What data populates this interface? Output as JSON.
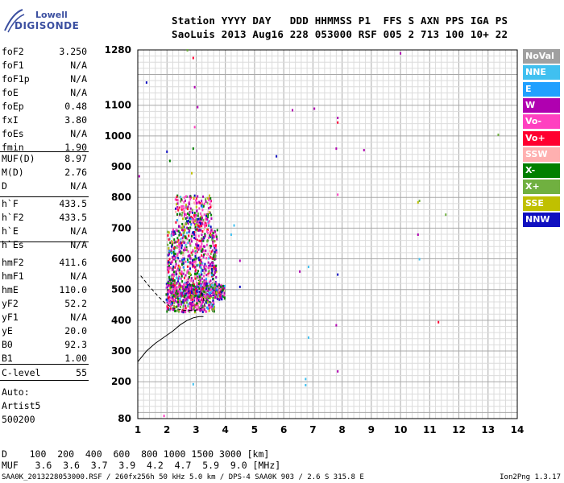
{
  "logo": {
    "line1": "Lowell",
    "line2": "DIGISONDE"
  },
  "header": {
    "line1": "Station YYYY DAY   DDD HHMMSS P1  FFS S AXN PPS IGA PS",
    "line2": "SaoLuis 2013 Aug16 228 053000 RSF 005 2 713 100 10+ 22"
  },
  "params_a": [
    {
      "name": "foF2",
      "value": "3.250"
    },
    {
      "name": "foF1",
      "value": "N/A"
    },
    {
      "name": "foF1p",
      "value": "N/A"
    },
    {
      "name": "foE",
      "value": "N/A"
    },
    {
      "name": "foEp",
      "value": "0.48"
    },
    {
      "name": "fxI",
      "value": "3.80"
    },
    {
      "name": "foEs",
      "value": "N/A"
    },
    {
      "name": "fmin",
      "value": "1.90"
    }
  ],
  "params_b": [
    {
      "name": "MUF(D)",
      "value": "8.97"
    },
    {
      "name": "M(D)",
      "value": "2.76"
    },
    {
      "name": "D",
      "value": "N/A"
    }
  ],
  "params_c": [
    {
      "name": "h`F",
      "value": "433.5"
    },
    {
      "name": "h`F2",
      "value": "433.5"
    },
    {
      "name": "h`E",
      "value": "N/A"
    },
    {
      "name": "h`Es",
      "value": "N/A"
    }
  ],
  "params_d": [
    {
      "name": "hmF2",
      "value": "411.6"
    },
    {
      "name": "hmF1",
      "value": "N/A"
    },
    {
      "name": "hmE",
      "value": "110.0"
    },
    {
      "name": "yF2",
      "value": "52.2"
    },
    {
      "name": "yF1",
      "value": "N/A"
    },
    {
      "name": "yE",
      "value": "20.0"
    },
    {
      "name": "B0",
      "value": "92.3"
    },
    {
      "name": "B1",
      "value": "1.00"
    }
  ],
  "params_e": [
    {
      "name": "C-level",
      "value": "55"
    }
  ],
  "auto": {
    "line1": "Auto:",
    "line2": "Artist5",
    "line3": "500200"
  },
  "legend": [
    {
      "label": "NoVal",
      "color": "#a0a0a0"
    },
    {
      "label": "NNE",
      "color": "#40c0f0"
    },
    {
      "label": "E",
      "color": "#20a0ff"
    },
    {
      "label": "W",
      "color": "#b000b0"
    },
    {
      "label": "Vo-",
      "color": "#ff40c0"
    },
    {
      "label": "Vo+",
      "color": "#ff0030"
    },
    {
      "label": "SSW",
      "color": "#ffb0b0"
    },
    {
      "label": "X-",
      "color": "#008000"
    },
    {
      "label": "X+",
      "color": "#70b040"
    },
    {
      "label": "SSE",
      "color": "#c0c000"
    },
    {
      "label": "NNW",
      "color": "#1010c0"
    }
  ],
  "bottom": {
    "row1": "D    100  200  400  600  800 1000 1500 3000 [km]",
    "row2": "MUF   3.6  3.6  3.7  3.9  4.2  4.7  5.9  9.0 [MHz]"
  },
  "footer": {
    "left": "SAA0K_2013228053000.RSF / 260fx256h 50 kHz 5.0 km / DPS-4 SAA0K 903 / 2.6 S 315.8 E",
    "right": "Ion2Png 1.3.17"
  },
  "chart_data": {
    "type": "scatter",
    "xlim": [
      1,
      14
    ],
    "ylim": [
      80,
      1280
    ],
    "x_ticks": [
      1,
      2,
      3,
      4,
      5,
      6,
      7,
      8,
      9,
      10,
      11,
      12,
      13,
      14
    ],
    "y_ticks": [
      80,
      200,
      300,
      400,
      500,
      600,
      700,
      800,
      900,
      1000,
      1100,
      1280
    ],
    "grid": true,
    "profile_curve": {
      "x": [
        1.0,
        1.3,
        1.6,
        1.9,
        2.2,
        2.45,
        2.7,
        2.9,
        3.1,
        3.25
      ],
      "y": [
        265,
        300,
        325,
        345,
        365,
        385,
        400,
        408,
        412,
        412
      ]
    },
    "dashed_trace": {
      "x": [
        1.1,
        1.4,
        1.7,
        1.95,
        2.2,
        2.6,
        3.0,
        3.3,
        3.25,
        3.15
      ],
      "y": [
        545,
        510,
        478,
        455,
        440,
        432,
        433,
        445,
        470,
        500
      ]
    },
    "scatter_points": [
      {
        "x": 1.05,
        "y": 870,
        "dir": "W"
      },
      {
        "x": 1.3,
        "y": 1175,
        "dir": "NNW"
      },
      {
        "x": 1.9,
        "y": 90,
        "dir": "Vo-"
      },
      {
        "x": 2.0,
        "y": 950,
        "dir": "NNW"
      },
      {
        "x": 2.1,
        "y": 920,
        "dir": "X-"
      },
      {
        "x": 2.7,
        "y": 1280,
        "dir": "X+"
      },
      {
        "x": 2.9,
        "y": 1255,
        "dir": "Vo+"
      },
      {
        "x": 2.95,
        "y": 1160,
        "dir": "W"
      },
      {
        "x": 3.05,
        "y": 1095,
        "dir": "W"
      },
      {
        "x": 2.95,
        "y": 1030,
        "dir": "Vo-"
      },
      {
        "x": 2.9,
        "y": 960,
        "dir": "X-"
      },
      {
        "x": 2.85,
        "y": 880,
        "dir": "SSE"
      },
      {
        "x": 2.9,
        "y": 193,
        "dir": "NNE"
      },
      {
        "x": 4.3,
        "y": 710,
        "dir": "NNE"
      },
      {
        "x": 4.2,
        "y": 680,
        "dir": "NNE"
      },
      {
        "x": 4.5,
        "y": 595,
        "dir": "W"
      },
      {
        "x": 4.5,
        "y": 510,
        "dir": "NNW"
      },
      {
        "x": 5.75,
        "y": 935,
        "dir": "NNW"
      },
      {
        "x": 6.3,
        "y": 1085,
        "dir": "W"
      },
      {
        "x": 6.55,
        "y": 560,
        "dir": "W"
      },
      {
        "x": 6.75,
        "y": 210,
        "dir": "NNE"
      },
      {
        "x": 6.75,
        "y": 190,
        "dir": "NNE"
      },
      {
        "x": 6.85,
        "y": 345,
        "dir": "NNE"
      },
      {
        "x": 6.85,
        "y": 575,
        "dir": "NNE"
      },
      {
        "x": 7.05,
        "y": 1090,
        "dir": "W"
      },
      {
        "x": 7.8,
        "y": 960,
        "dir": "W"
      },
      {
        "x": 7.85,
        "y": 1060,
        "dir": "W"
      },
      {
        "x": 7.85,
        "y": 1045,
        "dir": "Vo+"
      },
      {
        "x": 7.8,
        "y": 385,
        "dir": "W"
      },
      {
        "x": 7.85,
        "y": 235,
        "dir": "W"
      },
      {
        "x": 7.85,
        "y": 550,
        "dir": "NNW"
      },
      {
        "x": 7.85,
        "y": 810,
        "dir": "Vo-"
      },
      {
        "x": 8.75,
        "y": 955,
        "dir": "W"
      },
      {
        "x": 10.0,
        "y": 1270,
        "dir": "W"
      },
      {
        "x": 10.6,
        "y": 785,
        "dir": "SSE"
      },
      {
        "x": 10.65,
        "y": 790,
        "dir": "X+"
      },
      {
        "x": 10.6,
        "y": 680,
        "dir": "W"
      },
      {
        "x": 10.65,
        "y": 600,
        "dir": "NNE"
      },
      {
        "x": 11.3,
        "y": 395,
        "dir": "Vo+"
      },
      {
        "x": 11.55,
        "y": 745,
        "dir": "X+"
      },
      {
        "x": 13.35,
        "y": 1005,
        "dir": "X+"
      }
    ],
    "echo_cluster": {
      "note": "dense F-layer trace",
      "x_range": [
        1.9,
        3.8
      ],
      "y_range": [
        430,
        800
      ]
    }
  }
}
